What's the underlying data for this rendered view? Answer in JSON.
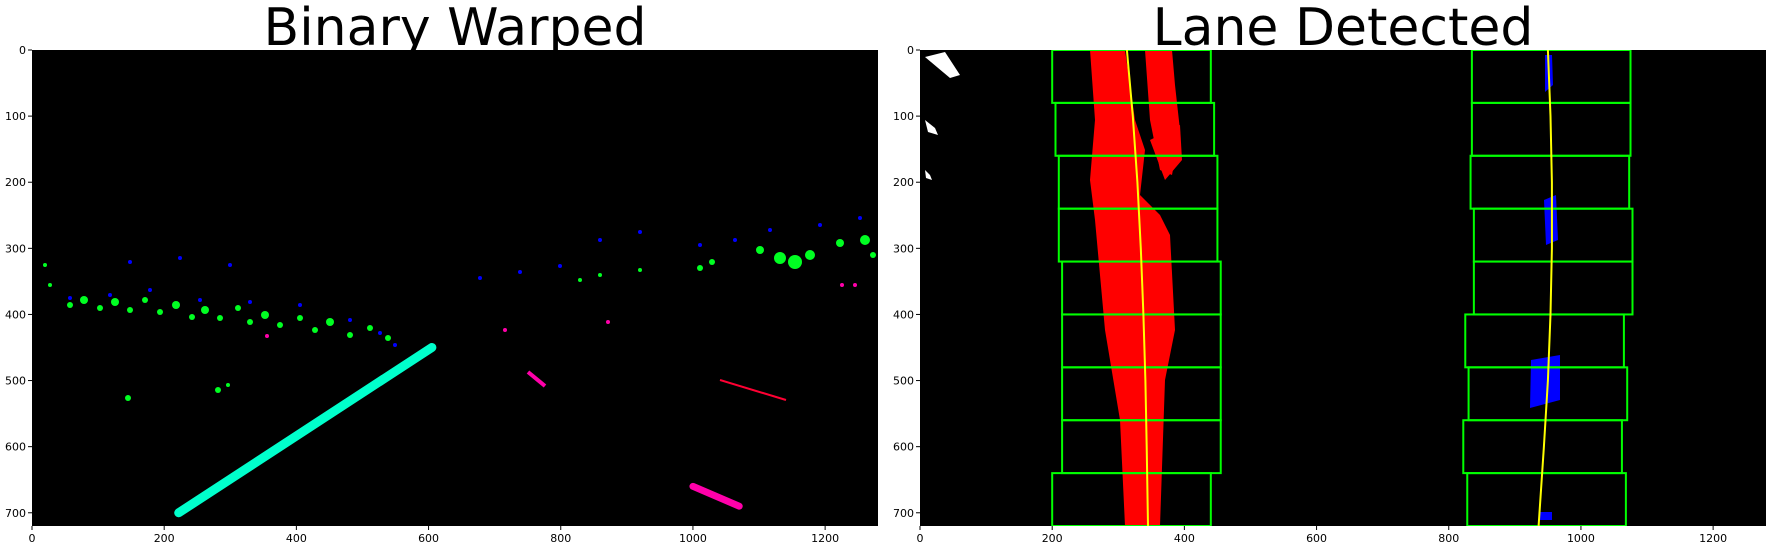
{
  "chart_data": [
    {
      "type": "image",
      "title": "Binary Warped",
      "xlim": [
        0,
        1280
      ],
      "ylim": [
        720,
        0
      ],
      "xticks": [
        0,
        200,
        400,
        600,
        800,
        1000,
        1200
      ],
      "yticks": [
        0,
        100,
        200,
        300,
        400,
        500,
        600,
        700
      ],
      "colors": {
        "background": "#000000",
        "green": "#00ff22",
        "blue": "#0000ff",
        "magenta": "#ff00aa",
        "cyan": "#00ffcc"
      },
      "left_lane_segment": {
        "x": [
          222,
          605
        ],
        "y": [
          700,
          450
        ]
      },
      "right_mark_segment": {
        "x": [
          1000,
          1070
        ],
        "y": [
          660,
          690
        ]
      }
    },
    {
      "type": "image",
      "title": "Lane Detected",
      "xlim": [
        0,
        1280
      ],
      "ylim": [
        720,
        0
      ],
      "xticks": [
        0,
        200,
        400,
        600,
        800,
        1000,
        1200
      ],
      "yticks": [
        0,
        100,
        200,
        300,
        400,
        500,
        600,
        700
      ],
      "colors": {
        "background": "#000000",
        "left_pixels": "#ff0000",
        "right_pixels": "#0000ff",
        "windows": "#00ff00",
        "fit_line": "#ffff00"
      },
      "windows_left": [
        {
          "y0": 0,
          "y1": 80,
          "x0": 200,
          "x1": 440
        },
        {
          "y0": 80,
          "y1": 160,
          "x0": 205,
          "x1": 445
        },
        {
          "y0": 160,
          "y1": 240,
          "x0": 210,
          "x1": 450
        },
        {
          "y0": 240,
          "y1": 320,
          "x0": 210,
          "x1": 450
        },
        {
          "y0": 320,
          "y1": 400,
          "x0": 215,
          "x1": 455
        },
        {
          "y0": 400,
          "y1": 480,
          "x0": 215,
          "x1": 455
        },
        {
          "y0": 480,
          "y1": 560,
          "x0": 215,
          "x1": 455
        },
        {
          "y0": 560,
          "y1": 640,
          "x0": 215,
          "x1": 455
        },
        {
          "y0": 640,
          "y1": 720,
          "x0": 200,
          "x1": 440
        }
      ],
      "windows_right": [
        {
          "y0": 0,
          "y1": 80,
          "x0": 835,
          "x1": 1075
        },
        {
          "y0": 80,
          "y1": 160,
          "x0": 835,
          "x1": 1075
        },
        {
          "y0": 160,
          "y1": 240,
          "x0": 833,
          "x1": 1073
        },
        {
          "y0": 240,
          "y1": 320,
          "x0": 838,
          "x1": 1078
        },
        {
          "y0": 320,
          "y1": 400,
          "x0": 838,
          "x1": 1078
        },
        {
          "y0": 400,
          "y1": 480,
          "x0": 825,
          "x1": 1065
        },
        {
          "y0": 480,
          "y1": 560,
          "x0": 830,
          "x1": 1070
        },
        {
          "y0": 560,
          "y1": 640,
          "x0": 822,
          "x1": 1062
        },
        {
          "y0": 640,
          "y1": 720,
          "x0": 828,
          "x1": 1068
        }
      ],
      "left_fit": {
        "y": [
          0,
          100,
          200,
          300,
          400,
          500,
          600,
          720
        ],
        "x": [
          313,
          322,
          329,
          334,
          338,
          341,
          343,
          345
        ]
      },
      "right_fit": {
        "y": [
          0,
          100,
          200,
          300,
          400,
          500,
          600,
          720
        ],
        "x": [
          950,
          954,
          956,
          956,
          954,
          950,
          944,
          936
        ]
      }
    }
  ]
}
